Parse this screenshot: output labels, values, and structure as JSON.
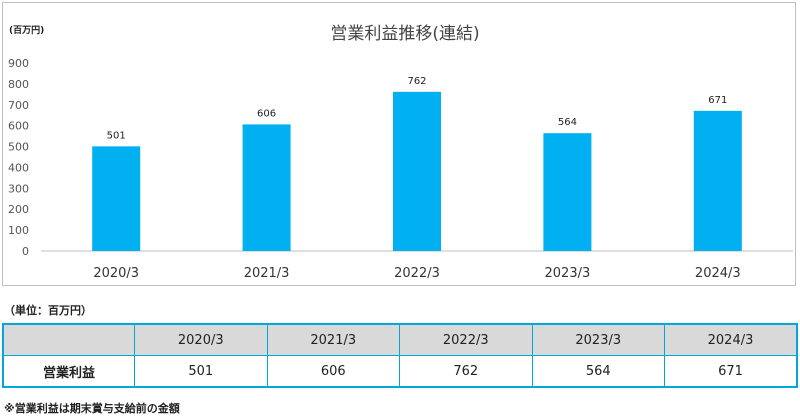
{
  "chart_data": {
    "type": "bar",
    "title": "営業利益推移(連結)",
    "unit_label": "(百万円)",
    "categories": [
      "2020/3",
      "2021/3",
      "2022/3",
      "2023/3",
      "2024/3"
    ],
    "values": [
      501,
      606,
      762,
      564,
      671
    ],
    "ylim": [
      0,
      900
    ],
    "yticks": [
      0,
      100,
      200,
      300,
      400,
      500,
      600,
      700,
      800,
      900
    ],
    "grid": false,
    "legend": "none",
    "bar_color": "#00b0f0"
  },
  "table": {
    "unit_note": "（単位：百万円）",
    "header_blank": "",
    "columns": [
      "2020/3",
      "2021/3",
      "2022/3",
      "2023/3",
      "2024/3"
    ],
    "row_label": "営業利益",
    "row_values": [
      "501",
      "606",
      "762",
      "564",
      "671"
    ],
    "border_color": "#00a8d8",
    "header_bg": "#d9d9d9"
  },
  "footnote": "※営業利益は期末賞与支給前の金額"
}
